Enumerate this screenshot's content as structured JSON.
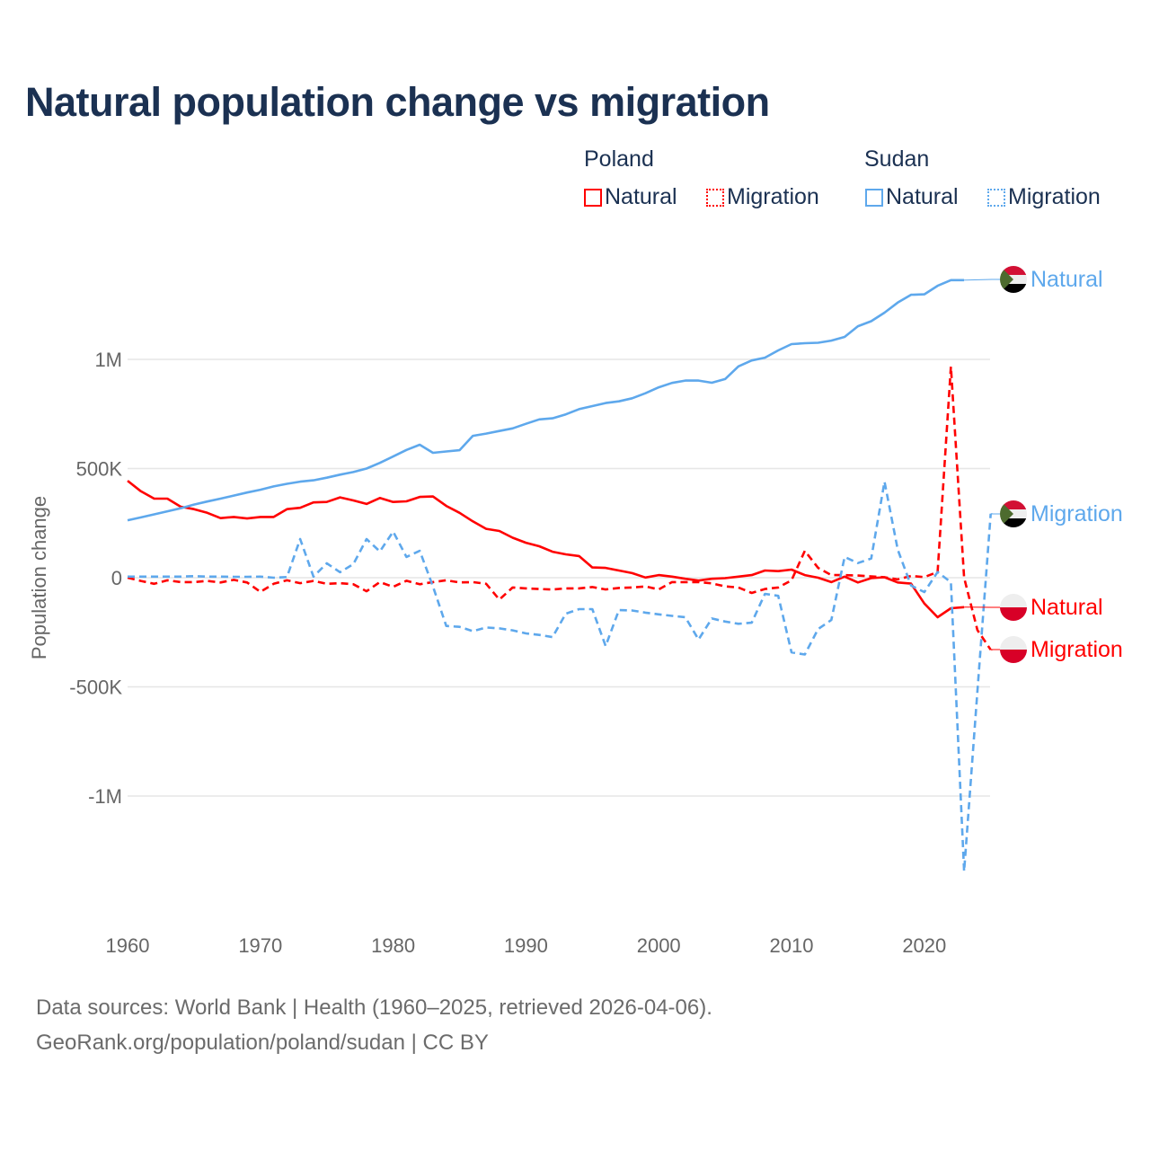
{
  "title": "Natural population change vs migration",
  "legend": {
    "groups": [
      {
        "name": "Poland",
        "items": [
          "Natural",
          "Migration"
        ]
      },
      {
        "name": "Sudan",
        "items": [
          "Natural",
          "Migration"
        ]
      }
    ]
  },
  "footer": {
    "line1": "Data sources: World Bank | Health (1960–2025, retrieved 2026-04-06).",
    "line2": "GeoRank.org/population/poland/sudan | CC BY"
  },
  "colors": {
    "poland": "#ff0000",
    "sudan": "#5ea8ec",
    "title": "#1b3152"
  },
  "chart_data": {
    "type": "line",
    "title": "Natural population change vs migration",
    "xlabel": "",
    "ylabel": "Population change",
    "xlim": [
      1960,
      2025
    ],
    "ylim": [
      -1500000,
      1500000
    ],
    "grid": true,
    "legend_placement": "top-right",
    "x_ticks": [
      {
        "v": 1960,
        "label": "1960"
      },
      {
        "v": 1970,
        "label": "1970"
      },
      {
        "v": 1980,
        "label": "1980"
      },
      {
        "v": 1990,
        "label": "1990"
      },
      {
        "v": 2000,
        "label": "2000"
      },
      {
        "v": 2010,
        "label": "2010"
      },
      {
        "v": 2020,
        "label": "2020"
      }
    ],
    "y_ticks": [
      {
        "v": 1000000,
        "label": "1M"
      },
      {
        "v": 500000,
        "label": "500K"
      },
      {
        "v": 0,
        "label": "0"
      },
      {
        "v": -500000,
        "label": "-500K"
      },
      {
        "v": -1000000,
        "label": "-1M"
      }
    ],
    "start_year": 1960,
    "unit": "thousands",
    "series": [
      {
        "name": "Poland Natural",
        "country": "Poland",
        "kind": "Natural",
        "end_label": "Natural",
        "color": "#ff0000",
        "dashed": false,
        "values": [
          444,
          396,
          362,
          362,
          325,
          314,
          297,
          273,
          278,
          271,
          278,
          278,
          314,
          320,
          345,
          347,
          368,
          354,
          338,
          365,
          347,
          350,
          370,
          372,
          329,
          297,
          258,
          224,
          214,
          183,
          160,
          144,
          119,
          107,
          99,
          47,
          45,
          33,
          21,
          1,
          12,
          5,
          -5,
          -13,
          -5,
          -2,
          5,
          12,
          33,
          30,
          37,
          12,
          0,
          -20,
          5,
          -22,
          -2,
          2,
          -22,
          -27,
          -118,
          -181,
          -140,
          -135
        ]
      },
      {
        "name": "Poland Migration",
        "country": "Poland",
        "kind": "Migration",
        "end_label": "Migration",
        "color": "#ff0000",
        "dashed": true,
        "values": [
          0,
          -15,
          -28,
          -12,
          -20,
          -20,
          -15,
          -22,
          -10,
          -22,
          -65,
          -28,
          -12,
          -25,
          -15,
          -28,
          -25,
          -30,
          -62,
          -20,
          -42,
          -14,
          -30,
          -20,
          -12,
          -22,
          -20,
          -28,
          -100,
          -45,
          -49,
          -52,
          -54,
          -49,
          -49,
          -43,
          -54,
          -47,
          -45,
          -40,
          -54,
          -20,
          -20,
          -20,
          -26,
          -40,
          -45,
          -70,
          -52,
          -45,
          -12,
          123,
          45,
          12,
          12,
          10,
          6,
          2,
          -8,
          8,
          3,
          26,
          967,
          0,
          -240,
          -330
        ]
      },
      {
        "name": "Sudan Natural",
        "country": "Sudan",
        "kind": "Natural",
        "end_label": "Natural",
        "color": "#5ea8ec",
        "dashed": false,
        "values": [
          263,
          276,
          290,
          304,
          318,
          335,
          349,
          362,
          376,
          390,
          403,
          418,
          430,
          440,
          446,
          458,
          472,
          484,
          500,
          526,
          555,
          585,
          609,
          572,
          578,
          584,
          650,
          660,
          672,
          684,
          705,
          725,
          730,
          748,
          772,
          786,
          800,
          808,
          822,
          845,
          872,
          892,
          903,
          903,
          893,
          910,
          968,
          995,
          1008,
          1041,
          1070,
          1074,
          1076,
          1086,
          1103,
          1152,
          1175,
          1214,
          1260,
          1296,
          1298,
          1337,
          1363,
          1363
        ]
      },
      {
        "name": "Sudan Migration",
        "country": "Sudan",
        "kind": "Migration",
        "end_label": "Migration",
        "color": "#5ea8ec",
        "dashed": true,
        "values": [
          5,
          5,
          5,
          5,
          5,
          7,
          5,
          5,
          4,
          4,
          5,
          0,
          3,
          177,
          5,
          66,
          25,
          62,
          177,
          120,
          211,
          95,
          123,
          -40,
          -221,
          -225,
          -245,
          -228,
          -232,
          -241,
          -255,
          -262,
          -272,
          -165,
          -144,
          -144,
          -313,
          -148,
          -150,
          -160,
          -168,
          -175,
          -181,
          -283,
          -187,
          -201,
          -211,
          -206,
          -74,
          -83,
          -342,
          -352,
          -235,
          -194,
          95,
          67,
          88,
          440,
          129,
          -36,
          -66,
          26,
          -21,
          -1345,
          -520,
          293
        ]
      }
    ]
  }
}
